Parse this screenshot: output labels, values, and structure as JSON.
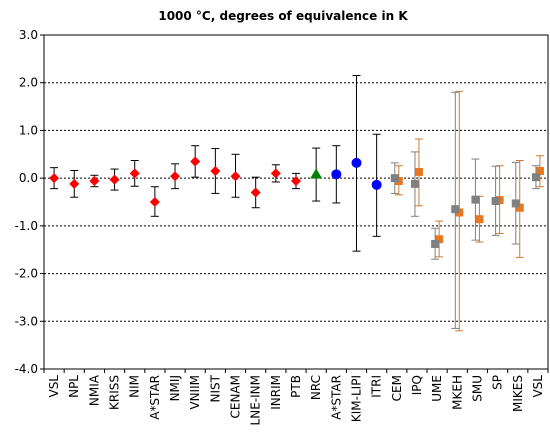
{
  "chart_data": {
    "type": "scatter",
    "title": "1000 °C, degrees of equivalence in K",
    "xlabel": "",
    "ylabel": "",
    "ylim": [
      -4.0,
      3.0
    ],
    "yticks": [
      3.0,
      2.0,
      1.0,
      0.0,
      -1.0,
      -2.0,
      -3.0,
      -4.0
    ],
    "ytick_labels": [
      "3.0",
      "2.0",
      "1.0",
      "0.0",
      "-1.0",
      "-2.0",
      "-3.0",
      "-4.0"
    ],
    "grid": "horizontal dashed",
    "categories": [
      "VSL",
      "NPL",
      "NMIA",
      "KRISS",
      "NIM",
      "A*STAR",
      "NMIJ",
      "VNIIM",
      "NIST",
      "CENAM",
      "LNE-INM",
      "INRIM",
      "PTB",
      "NRC",
      "A*STAR",
      "KIM-LIPI",
      "ITRI",
      "CEM",
      "IPQ",
      "UME",
      "MKEH",
      "SMU",
      "SP",
      "MIKES",
      "VSL"
    ],
    "series": [
      {
        "marker": "diamond",
        "color": "#ff0000",
        "errcolor": "#000000",
        "points": [
          {
            "i": 0,
            "y": 0.0,
            "lo": -0.22,
            "hi": 0.22
          },
          {
            "i": 1,
            "y": -0.12,
            "lo": -0.4,
            "hi": 0.16
          },
          {
            "i": 2,
            "y": -0.06,
            "lo": -0.18,
            "hi": 0.06
          },
          {
            "i": 3,
            "y": -0.03,
            "lo": -0.25,
            "hi": 0.19
          },
          {
            "i": 4,
            "y": 0.1,
            "lo": -0.17,
            "hi": 0.37
          },
          {
            "i": 5,
            "y": -0.5,
            "lo": -0.8,
            "hi": -0.18
          },
          {
            "i": 6,
            "y": 0.04,
            "lo": -0.22,
            "hi": 0.3
          },
          {
            "i": 7,
            "y": 0.35,
            "lo": 0.02,
            "hi": 0.68
          },
          {
            "i": 8,
            "y": 0.15,
            "lo": -0.32,
            "hi": 0.62
          },
          {
            "i": 9,
            "y": 0.04,
            "lo": -0.4,
            "hi": 0.5
          },
          {
            "i": 10,
            "y": -0.3,
            "lo": -0.62,
            "hi": 0.02
          },
          {
            "i": 11,
            "y": 0.1,
            "lo": -0.08,
            "hi": 0.28
          },
          {
            "i": 12,
            "y": -0.06,
            "lo": -0.22,
            "hi": 0.1
          }
        ]
      },
      {
        "marker": "triangle",
        "color": "#008000",
        "errcolor": "#000000",
        "points": [
          {
            "i": 13,
            "y": 0.08,
            "lo": -0.48,
            "hi": 0.63
          }
        ]
      },
      {
        "marker": "circle",
        "color": "#0000ff",
        "errcolor": "#000000",
        "points": [
          {
            "i": 14,
            "y": 0.08,
            "lo": -0.52,
            "hi": 0.68
          },
          {
            "i": 15,
            "y": 0.32,
            "lo": -1.53,
            "hi": 2.15
          },
          {
            "i": 16,
            "y": -0.14,
            "lo": -1.22,
            "hi": 0.92
          }
        ]
      },
      {
        "marker": "square",
        "color": "#e87722",
        "errcolor": "#cc7a33",
        "offset": 1,
        "points": [
          {
            "i": 17,
            "y": -0.06,
            "lo": -0.35,
            "hi": 0.26
          },
          {
            "i": 18,
            "y": 0.13,
            "lo": -0.58,
            "hi": 0.82
          },
          {
            "i": 19,
            "y": -1.28,
            "lo": -1.65,
            "hi": -0.9
          },
          {
            "i": 20,
            "y": -0.72,
            "lo": -3.2,
            "hi": 1.82
          },
          {
            "i": 21,
            "y": -0.86,
            "lo": -1.34,
            "hi": -0.38
          },
          {
            "i": 22,
            "y": -0.46,
            "lo": -1.16,
            "hi": 0.26
          },
          {
            "i": 23,
            "y": -0.62,
            "lo": -1.66,
            "hi": 0.37
          },
          {
            "i": 24,
            "y": 0.15,
            "lo": -0.18,
            "hi": 0.47
          }
        ]
      },
      {
        "marker": "square",
        "color": "#808080",
        "errcolor": "#808080",
        "offset": -1,
        "points": [
          {
            "i": 17,
            "y": 0.0,
            "lo": -0.32,
            "hi": 0.32
          },
          {
            "i": 18,
            "y": -0.12,
            "lo": -0.8,
            "hi": 0.55
          },
          {
            "i": 19,
            "y": -1.38,
            "lo": -1.7,
            "hi": -1.05
          },
          {
            "i": 20,
            "y": -0.65,
            "lo": -3.15,
            "hi": 1.8
          },
          {
            "i": 21,
            "y": -0.45,
            "lo": -1.3,
            "hi": 0.4
          },
          {
            "i": 22,
            "y": -0.48,
            "lo": -1.2,
            "hi": 0.25
          },
          {
            "i": 23,
            "y": -0.53,
            "lo": -1.38,
            "hi": 0.33
          },
          {
            "i": 24,
            "y": 0.02,
            "lo": -0.22,
            "hi": 0.26
          }
        ]
      }
    ]
  }
}
